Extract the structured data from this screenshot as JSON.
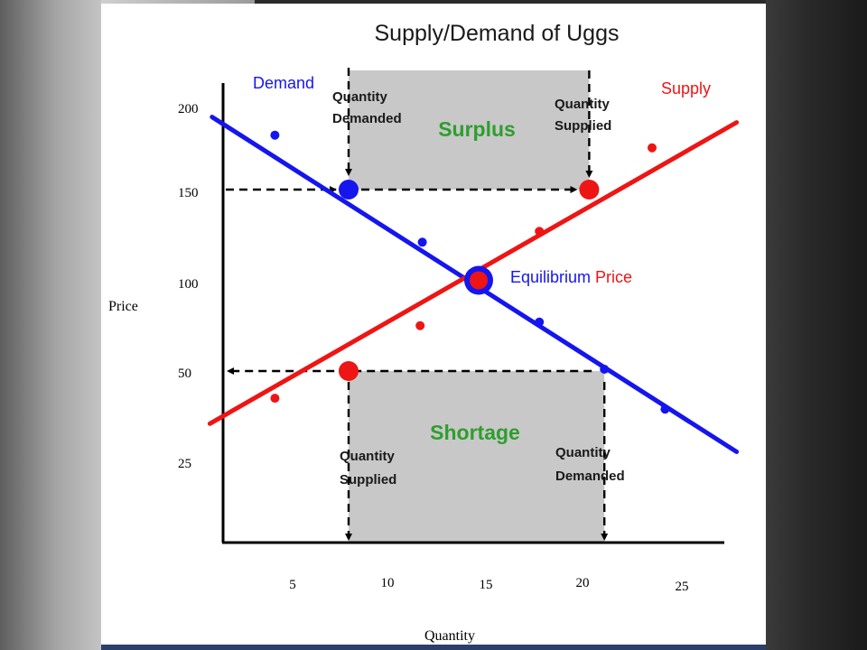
{
  "chart_data": {
    "type": "line",
    "title": "Supply/Demand of Uggs",
    "xlabel": "Quantity",
    "ylabel": "Price",
    "x_ticks": [
      "5",
      "10",
      "15",
      "20",
      "25"
    ],
    "y_ticks": [
      "200",
      "150",
      "100",
      "50",
      "25"
    ],
    "series": [
      {
        "name": "Demand",
        "color": "#1515ee",
        "points": [
          [
            5.6,
            180
          ],
          [
            9,
            150
          ],
          [
            12.4,
            121
          ],
          [
            15,
            100
          ],
          [
            17.8,
            77
          ],
          [
            20.8,
            51
          ],
          [
            23.6,
            29
          ]
        ]
      },
      {
        "name": "Supply",
        "color": "#ee1515",
        "points": [
          [
            5.6,
            35
          ],
          [
            9,
            50
          ],
          [
            12.3,
            75
          ],
          [
            15,
            100
          ],
          [
            17.8,
            127
          ],
          [
            20.1,
            150
          ],
          [
            23,
            173
          ]
        ]
      }
    ],
    "annotations": {
      "surplus": "Surplus",
      "shortage": "Shortage",
      "quantity_demanded_top": [
        "Quantity",
        "Demanded"
      ],
      "quantity_supplied_top": [
        "Quantity",
        "Supplied"
      ],
      "quantity_supplied_bottom": [
        "Quantity",
        "Supplied"
      ],
      "quantity_demanded_bottom": [
        "Quantity",
        "Demanded"
      ],
      "equilibrium_word": "Equilibrium",
      "price_word": "Price"
    },
    "colors": {
      "demand": "#1515ee",
      "supply": "#ee1515",
      "region_fill": "#c8c8c8",
      "region_text": "#2e9e2e"
    }
  }
}
